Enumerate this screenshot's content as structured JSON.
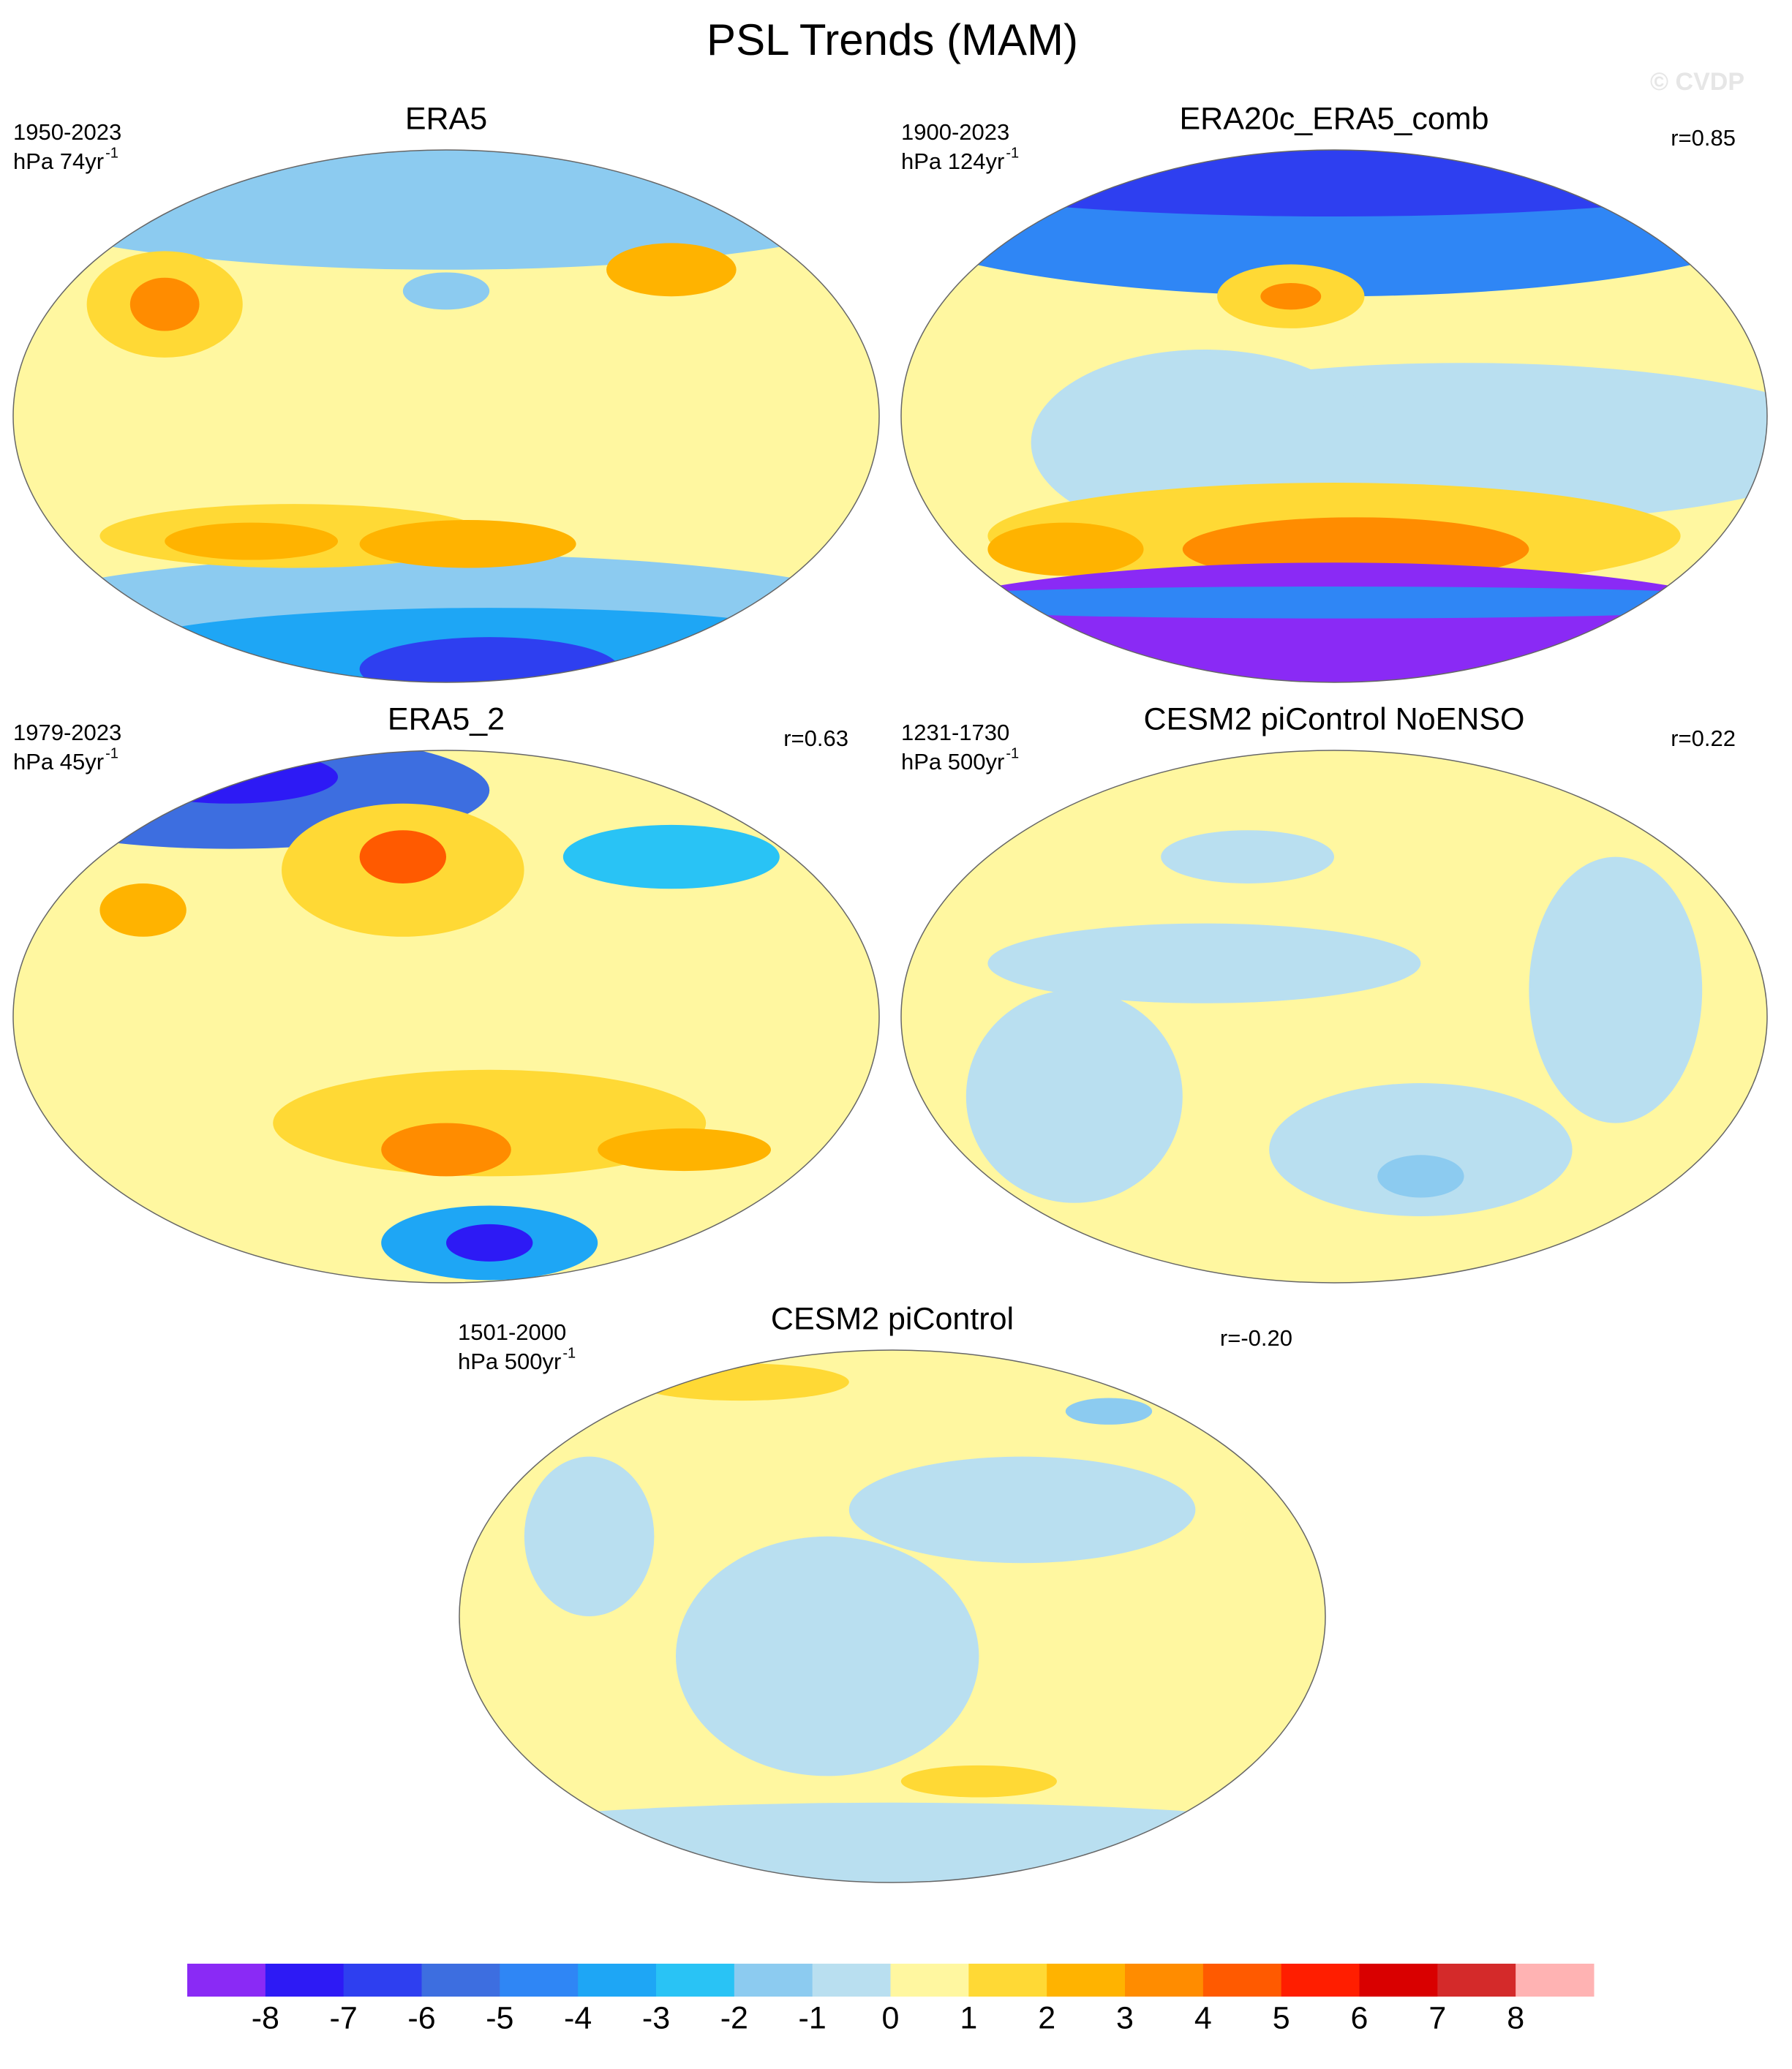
{
  "title": "PSL Trends (MAM)",
  "watermark": "© CVDP",
  "panels": [
    {
      "title": "ERA5",
      "period": "1950-2023",
      "units": "hPa 74yr",
      "units_exp": "-1"
    },
    {
      "title": "ERA20c_ERA5_comb",
      "period": "1900-2023",
      "units": "hPa 124yr",
      "units_exp": "-1",
      "r": "r=0.85"
    },
    {
      "title": "ERA5_2",
      "period": "1979-2023",
      "units": "hPa 45yr",
      "units_exp": "-1",
      "r": "r=0.63"
    },
    {
      "title": "CESM2 piControl NoENSO",
      "period": "1231-1730",
      "units": "hPa 500yr",
      "units_exp": "-1",
      "r": "r=0.22"
    },
    {
      "title": "CESM2 piControl",
      "period": "1501-2000",
      "units": "hPa 500yr",
      "units_exp": "-1",
      "r": "r=-0.20"
    }
  ],
  "colorbar": {
    "colors": [
      "#8a2af5",
      "#2d1af5",
      "#2e3ff0",
      "#3d6ee0",
      "#2f86f5",
      "#1ea6f5",
      "#29c3f5",
      "#8ccbf0",
      "#b9dff0",
      "#fff7a0",
      "#ffd935",
      "#ffb300",
      "#ff8c00",
      "#ff5a00",
      "#ff1e00",
      "#d90000",
      "#d42a2a",
      "#ffb3b3"
    ],
    "ticks": [
      -8,
      -7,
      -6,
      -5,
      -4,
      -3,
      -2,
      -1,
      0,
      1,
      2,
      3,
      4,
      5,
      6,
      7,
      8
    ]
  }
}
